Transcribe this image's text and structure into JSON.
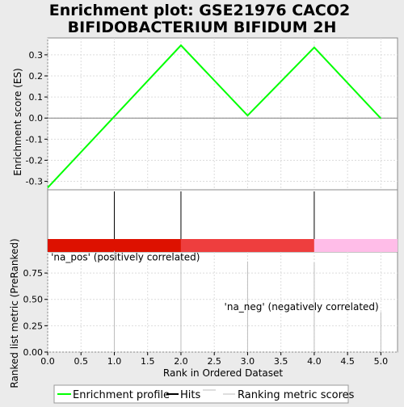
{
  "title": [
    "Enrichment plot: GSE21976 CACO2",
    "BIFIDOBACTERIUM BIFIDUM 2H"
  ],
  "chart_data": [
    {
      "type": "line",
      "panel": "enrichment",
      "ylabel": "Enrichment score (ES)",
      "series": [
        {
          "name": "Enrichment profile",
          "color": "#00ff00",
          "x": [
            0,
            2,
            3,
            4,
            5
          ],
          "y": [
            -0.33,
            0.345,
            0.012,
            0.335,
            -0.002
          ]
        }
      ],
      "xlim": [
        0,
        5.25
      ],
      "ylim": [
        -0.34,
        0.38
      ],
      "yticks": [
        "-0.3",
        "-0.2",
        "-0.1",
        "0.0",
        "0.1",
        "0.2",
        "0.3"
      ],
      "ytick_values": [
        -0.3,
        -0.2,
        -0.1,
        0.0,
        0.1,
        0.2,
        0.3
      ],
      "grid": true
    },
    {
      "type": "bar",
      "panel": "hits",
      "series_name": "Hits",
      "x": [
        1,
        2,
        4
      ],
      "color": "#000000"
    },
    {
      "type": "heatmap",
      "panel": "ranking-color-bar",
      "segments": [
        {
          "from": 0,
          "to": 2,
          "color": "#dd1100"
        },
        {
          "from": 2,
          "to": 4,
          "color": "#ee3e3e"
        },
        {
          "from": 4,
          "to": 5.25,
          "color": "#ffbde8"
        }
      ]
    },
    {
      "type": "bar",
      "panel": "ranked-list",
      "series_name": "Ranking metric scores",
      "x": [
        1,
        2,
        3,
        4,
        5
      ],
      "values": [
        0.96,
        0.92,
        0.86,
        0.85,
        0.38
      ],
      "color": "#bdbdbd",
      "xlabel": "Rank in Ordered Dataset",
      "ylabel": "Ranked list metric (PreRanked)",
      "xlim": [
        0,
        5.25
      ],
      "ylim": [
        0,
        0.95
      ],
      "xticks": [
        "0.0",
        "0.5",
        "1.0",
        "1.5",
        "2.0",
        "2.5",
        "3.0",
        "3.5",
        "4.0",
        "4.5",
        "5.0"
      ],
      "xtick_values": [
        0,
        0.5,
        1,
        1.5,
        2,
        2.5,
        3,
        3.5,
        4,
        4.5,
        5
      ],
      "yticks": [
        "0.00",
        "0.25",
        "0.50",
        "0.75"
      ],
      "ytick_values": [
        0,
        0.25,
        0.5,
        0.75
      ],
      "annotations": [
        {
          "text": "'na_pos' (positively correlated)",
          "color": "#cc0000",
          "x": 0.05,
          "y": 0.87
        },
        {
          "text": "'na_neg' (negatively correlated)",
          "color": "#0000cc",
          "x": 2.65,
          "y": 0.4
        }
      ],
      "grid": true
    }
  ],
  "legend": [
    {
      "label": "Enrichment profile",
      "color": "#00ff00"
    },
    {
      "label": "Hits",
      "color": "#000000"
    },
    {
      "label": "",
      "color": "#bdbdbd"
    },
    {
      "label": "Ranking metric scores",
      "color": "#bdbdbd"
    }
  ]
}
